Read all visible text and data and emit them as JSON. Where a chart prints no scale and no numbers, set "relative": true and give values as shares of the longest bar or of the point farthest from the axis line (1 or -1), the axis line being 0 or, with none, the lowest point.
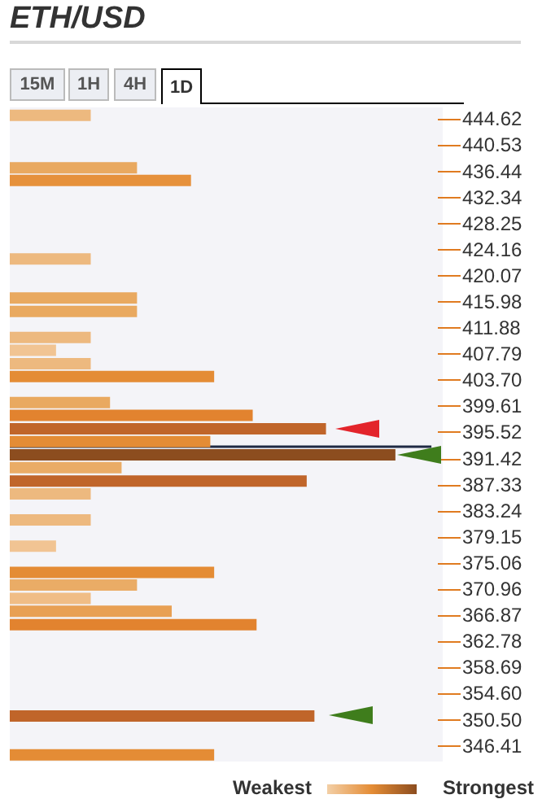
{
  "chart_data": {
    "type": "bar",
    "title": "ETH/USD",
    "orientation": "horizontal",
    "relative": true,
    "grid": false,
    "annotations": [
      "15M",
      "1H",
      "4H",
      "1D",
      "Weakest",
      "Strongest"
    ],
    "x": [
      445.2,
      437.0,
      435.0,
      422.7,
      416.6,
      414.5,
      410.4,
      408.4,
      406.3,
      404.3,
      400.2,
      398.2,
      396.1,
      394.1,
      392.0,
      390.0,
      387.9,
      385.9,
      381.8,
      377.7,
      373.6,
      371.6,
      369.5,
      367.5,
      365.4,
      351.1,
      345.0
    ],
    "values": [
      0.21,
      0.33,
      0.47,
      0.21,
      0.33,
      0.33,
      0.21,
      0.12,
      0.21,
      0.53,
      0.26,
      0.63,
      0.82,
      0.52,
      1,
      0.29,
      0.77,
      0.21,
      0.21,
      0.12,
      0.53,
      0.33,
      0.21,
      0.42,
      0.64,
      0.79,
      0.53
    ],
    "colors": [
      "#edb97f",
      "#e9a960",
      "#e6913c",
      "#edb97f",
      "#e9a960",
      "#e9a960",
      "#edb97f",
      "#f1c493",
      "#edb97f",
      "#e48c35",
      "#e9a960",
      "#e2832f",
      "#c0652a",
      "#e48c35",
      "#8c4d1f",
      "#eaac66",
      "#c0652a",
      "#edb97f",
      "#edb97f",
      "#f1c493",
      "#e48c35",
      "#eaac66",
      "#f0bd86",
      "#e8a054",
      "#e2832f",
      "#c0652a",
      "#e48c35"
    ],
    "ylim": [
      344.2,
      446.2
    ],
    "yticks": [
      444.62,
      440.53,
      436.44,
      432.34,
      428.25,
      424.16,
      420.07,
      415.98,
      411.88,
      407.79,
      {
        "value": 403.7,
        "label": "403.70"
      },
      399.61,
      395.52,
      391.42,
      387.33,
      383.24,
      379.15,
      375.06,
      370.96,
      366.87,
      362.78,
      358.69,
      {
        "value": 354.6,
        "label": "354.60"
      },
      {
        "value": 350.5,
        "label": "350.50"
      },
      346.41
    ],
    "ref_lines": [
      {
        "axis": "y",
        "value": 393.3,
        "color": "#1f2a44"
      }
    ]
  }
}
